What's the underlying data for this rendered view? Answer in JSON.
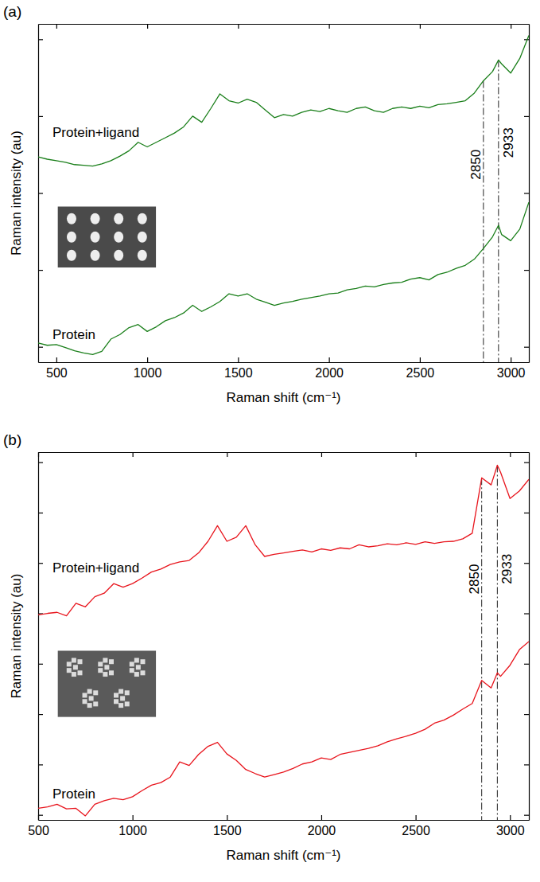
{
  "chart_data": [
    {
      "type": "line",
      "panel_label": "(a)",
      "x_label": "Raman shift (cm⁻¹)",
      "y_label": "Raman intensity (au)",
      "x": [
        400,
        450,
        500,
        550,
        600,
        650,
        700,
        750,
        800,
        850,
        900,
        950,
        1000,
        1050,
        1100,
        1150,
        1200,
        1250,
        1300,
        1350,
        1400,
        1450,
        1500,
        1550,
        1600,
        1650,
        1700,
        1750,
        1800,
        1850,
        1900,
        1950,
        2000,
        2050,
        2100,
        2150,
        2200,
        2250,
        2300,
        2350,
        2400,
        2450,
        2500,
        2550,
        2600,
        2650,
        2700,
        2750,
        2800,
        2850,
        2900,
        2933,
        2950,
        3000,
        3050,
        3100
      ],
      "series": [
        {
          "name": "Protein+ligand",
          "color": "#1a7f1a",
          "values": [
            2.67,
            2.64,
            2.62,
            2.6,
            2.57,
            2.56,
            2.55,
            2.58,
            2.62,
            2.68,
            2.75,
            2.86,
            2.8,
            2.86,
            2.92,
            2.98,
            3.06,
            3.2,
            3.12,
            3.3,
            3.49,
            3.4,
            3.37,
            3.42,
            3.38,
            3.28,
            3.18,
            3.22,
            3.2,
            3.25,
            3.28,
            3.26,
            3.3,
            3.27,
            3.25,
            3.3,
            3.32,
            3.27,
            3.25,
            3.3,
            3.32,
            3.3,
            3.33,
            3.31,
            3.35,
            3.36,
            3.38,
            3.4,
            3.5,
            3.66,
            3.78,
            3.93,
            3.88,
            3.76,
            3.95,
            4.25
          ]
        },
        {
          "name": "Protein",
          "color": "#1a7f1a",
          "values": [
            0.25,
            0.22,
            0.23,
            0.19,
            0.15,
            0.12,
            0.1,
            0.14,
            0.3,
            0.36,
            0.45,
            0.49,
            0.4,
            0.46,
            0.54,
            0.58,
            0.64,
            0.74,
            0.66,
            0.72,
            0.79,
            0.89,
            0.86,
            0.89,
            0.82,
            0.78,
            0.74,
            0.77,
            0.79,
            0.82,
            0.84,
            0.86,
            0.89,
            0.9,
            0.94,
            0.96,
            0.99,
            0.98,
            1.01,
            1.03,
            1.04,
            1.08,
            1.1,
            1.07,
            1.14,
            1.17,
            1.22,
            1.26,
            1.34,
            1.48,
            1.63,
            1.78,
            1.66,
            1.58,
            1.73,
            2.08
          ]
        }
      ],
      "xlim": [
        400,
        3100
      ],
      "xticks": [
        500,
        1000,
        1500,
        2000,
        2500,
        3000
      ],
      "ylim": [
        0,
        4.4
      ],
      "yticks": [
        0.2,
        1.2,
        2.2,
        3.2,
        4.2
      ],
      "tick_labels": "x",
      "annotations": [
        {
          "text": "2850",
          "x": 2850
        },
        {
          "text": "2933",
          "x": 2933
        }
      ]
    },
    {
      "type": "line",
      "panel_label": "(b)",
      "x_label": "Raman shift (cm⁻¹)",
      "y_label": "Raman intensity (au)",
      "x": [
        500,
        550,
        600,
        650,
        700,
        750,
        800,
        850,
        900,
        950,
        1000,
        1050,
        1100,
        1150,
        1200,
        1250,
        1300,
        1350,
        1400,
        1450,
        1500,
        1550,
        1600,
        1650,
        1700,
        1750,
        1800,
        1850,
        1900,
        1950,
        2000,
        2050,
        2100,
        2150,
        2200,
        2250,
        2300,
        2350,
        2400,
        2450,
        2500,
        2550,
        2600,
        2650,
        2700,
        2750,
        2800,
        2850,
        2900,
        2933,
        2950,
        3000,
        3050,
        3100
      ],
      "series": [
        {
          "name": "Protein+ligand",
          "color": "#e8141c",
          "values": [
            4.07,
            4.1,
            4.12,
            4.05,
            4.3,
            4.23,
            4.43,
            4.5,
            4.69,
            4.62,
            4.69,
            4.8,
            4.92,
            4.98,
            5.07,
            5.12,
            5.15,
            5.3,
            5.53,
            5.84,
            5.53,
            5.61,
            5.84,
            5.46,
            5.23,
            5.27,
            5.3,
            5.33,
            5.36,
            5.32,
            5.38,
            5.35,
            5.4,
            5.38,
            5.46,
            5.42,
            5.44,
            5.48,
            5.46,
            5.5,
            5.47,
            5.52,
            5.49,
            5.52,
            5.53,
            5.58,
            5.69,
            6.79,
            6.65,
            7.04,
            6.9,
            6.38,
            6.53,
            6.76
          ]
        },
        {
          "name": "Protein",
          "color": "#e8141c",
          "values": [
            0.23,
            0.26,
            0.31,
            0.22,
            0.23,
            0.08,
            0.31,
            0.38,
            0.43,
            0.4,
            0.46,
            0.58,
            0.69,
            0.74,
            0.85,
            1.15,
            1.08,
            1.3,
            1.46,
            1.54,
            1.31,
            1.18,
            1.0,
            0.92,
            0.85,
            0.9,
            0.95,
            1.02,
            1.11,
            1.15,
            1.23,
            1.2,
            1.3,
            1.34,
            1.38,
            1.42,
            1.47,
            1.55,
            1.61,
            1.66,
            1.72,
            1.8,
            1.92,
            1.98,
            2.08,
            2.2,
            2.31,
            2.77,
            2.62,
            2.92,
            2.85,
            3.07,
            3.38,
            3.54
          ]
        }
      ],
      "xlim": [
        500,
        3100
      ],
      "xticks": [
        500,
        1000,
        1500,
        2000,
        2500,
        3000
      ],
      "ylim": [
        0,
        7.3
      ],
      "yticks": [
        0.1,
        1.1,
        2.1,
        3.1,
        4.1,
        5.1,
        6.1,
        7.1
      ],
      "tick_labels": "x",
      "annotations": [
        {
          "text": "2850",
          "x": 2850
        },
        {
          "text": "2933",
          "x": 2933
        }
      ]
    }
  ]
}
